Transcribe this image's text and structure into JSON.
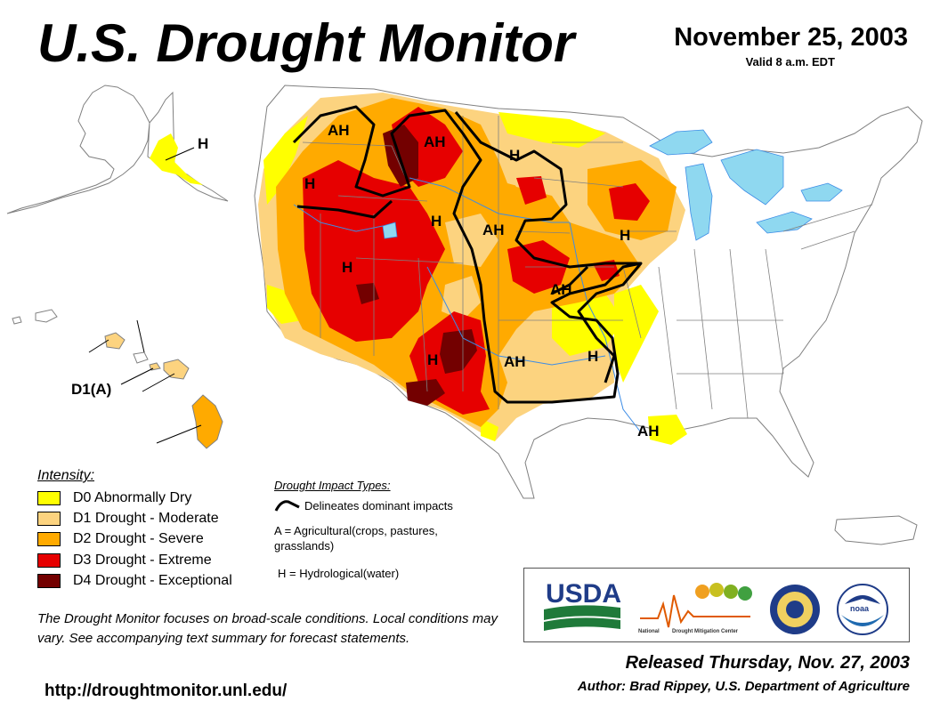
{
  "header": {
    "title": "U.S. Drought Monitor",
    "date": "November 25, 2003",
    "valid": "Valid 8 a.m. EDT"
  },
  "legend": {
    "title": "Intensity:",
    "items": [
      {
        "label": "D0 Abnormally Dry",
        "color": "#ffff00"
      },
      {
        "label": "D1 Drought - Moderate",
        "color": "#fcd37f"
      },
      {
        "label": "D2 Drought - Severe",
        "color": "#ffaa00"
      },
      {
        "label": "D3 Drought - Extreme",
        "color": "#e60000"
      },
      {
        "label": "D4 Drought - Exceptional",
        "color": "#730000"
      }
    ]
  },
  "impacts": {
    "title": "Drought Impact Types:",
    "delineates": "Delineates dominant impacts",
    "agricultural": "A = Agricultural(crops, pastures, grasslands)",
    "hydrological": "H = Hydrological(water)"
  },
  "map": {
    "labels": [
      "AH",
      "AH",
      "H",
      "H",
      "H",
      "AH",
      "H",
      "H",
      "AH",
      "H",
      "AH",
      "H",
      "AH",
      "H"
    ],
    "hawaii_label": "D1(A)",
    "colors": {
      "water": "#8fd8f0",
      "border": "#808080",
      "river": "#3c8ce6"
    }
  },
  "note": "The Drought Monitor focuses on broad-scale conditions. Local conditions may vary. See accompanying text summary for forecast statements.",
  "url": "http://droughtmonitor.unl.edu/",
  "logos": {
    "usda": "USDA",
    "ndmc_prefix": "National",
    "ndmc_suffix": "Drought Mitigation Center",
    "noaa": "noaa"
  },
  "footer": {
    "released": "Released Thursday, Nov. 27, 2003",
    "author": "Author: Brad Rippey, U.S. Department of Agriculture"
  }
}
